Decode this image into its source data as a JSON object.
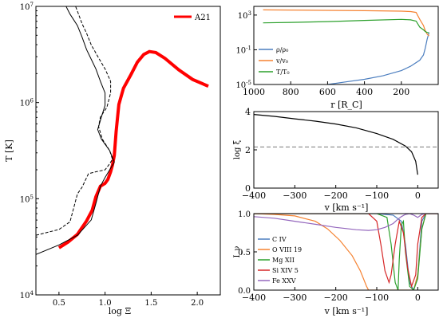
{
  "chart_data": [
    {
      "type": "line",
      "xlabel": "log Ξ",
      "ylabel": "T [K]",
      "xlim": [
        0.25,
        2.25
      ],
      "ylim_log10": [
        4,
        7
      ],
      "yscale": "log",
      "xticks": [
        "0.5",
        "1.0",
        "1.5",
        "2.0"
      ],
      "yticks": [
        "10^4",
        "10^5",
        "10^6",
        "10^7"
      ],
      "legend": {
        "placement": "top-right",
        "entries": [
          "A21"
        ]
      },
      "series": [
        {
          "name": "A21",
          "color": "#ff0000",
          "style": "thick",
          "x": [
            0.5,
            0.6,
            0.7,
            0.8,
            0.86,
            0.9,
            0.95,
            1.0,
            1.03,
            1.06,
            1.08,
            1.1,
            1.12,
            1.15,
            1.2,
            1.28,
            1.35,
            1.42,
            1.48,
            1.55,
            1.65,
            1.8,
            1.95,
            2.12
          ],
          "y_log10": [
            4.49,
            4.55,
            4.63,
            4.77,
            4.88,
            5.02,
            5.13,
            5.16,
            5.2,
            5.28,
            5.35,
            5.45,
            5.7,
            5.98,
            6.15,
            6.29,
            6.42,
            6.5,
            6.53,
            6.52,
            6.46,
            6.34,
            6.24,
            6.17
          ]
        },
        {
          "name": "",
          "color": "#000000",
          "style": "solid",
          "x": [
            0.25,
            0.5,
            0.7,
            0.85,
            0.9,
            0.95,
            1.0,
            1.05,
            1.08,
            1.1,
            1.05,
            0.96,
            0.92,
            0.96,
            1.0,
            1.0,
            0.95,
            0.9,
            0.85,
            0.8,
            0.75,
            0.7,
            0.62,
            0.55,
            0.47
          ],
          "y_log10": [
            4.42,
            4.52,
            4.62,
            4.78,
            4.95,
            5.13,
            5.22,
            5.3,
            5.35,
            5.38,
            5.5,
            5.62,
            5.72,
            5.85,
            5.97,
            6.1,
            6.22,
            6.35,
            6.45,
            6.55,
            6.68,
            6.8,
            6.92,
            7.05,
            7.2
          ]
        },
        {
          "name": "",
          "color": "#000000",
          "style": "dashed",
          "x": [
            0.25,
            0.5,
            0.62,
            0.7,
            0.75,
            0.82,
            0.9,
            1.0,
            1.04,
            1.08,
            1.05,
            0.97,
            0.93,
            0.95,
            1.02,
            1.06,
            1.06,
            1.0,
            0.92,
            0.85,
            0.8,
            0.75,
            0.7,
            0.64
          ],
          "y_log10": [
            4.62,
            4.68,
            4.76,
            5.05,
            5.12,
            5.26,
            5.28,
            5.3,
            5.35,
            5.41,
            5.5,
            5.62,
            5.75,
            5.85,
            5.95,
            6.1,
            6.22,
            6.35,
            6.48,
            6.6,
            6.72,
            6.82,
            6.95,
            7.1
          ]
        }
      ]
    },
    {
      "type": "line",
      "xlabel": "r [R_C]",
      "ylabel": "",
      "xlim": [
        1000,
        0
      ],
      "ylim_log10": [
        -5,
        4
      ],
      "yscale": "log",
      "xticks": [
        "1000",
        "800",
        "600",
        "400",
        "200"
      ],
      "yticks": [
        "10^-5",
        "10^-1",
        "10^3"
      ],
      "legend": {
        "placement": "lower-left",
        "entries": [
          "ρ/ρ₀",
          "v/v₀",
          "T/T₀"
        ]
      },
      "series": [
        {
          "name": "ρ/ρ₀",
          "color": "#4c7ebf",
          "r": [
            600,
            500,
            400,
            300,
            200,
            150,
            100,
            80,
            70,
            60,
            50
          ],
          "y_log10": [
            -5,
            -4.7,
            -4.4,
            -4.0,
            -3.4,
            -2.9,
            -2.2,
            -1.6,
            -0.8,
            0.2,
            1.0
          ]
        },
        {
          "name": "v/v₀",
          "color": "#f58231",
          "r": [
            950,
            800,
            600,
            400,
            200,
            150,
            120,
            100,
            80,
            70,
            60,
            50
          ],
          "y_log10": [
            3.6,
            3.58,
            3.54,
            3.5,
            3.45,
            3.4,
            3.3,
            2.5,
            1.8,
            1.2,
            0.8,
            0.6
          ]
        },
        {
          "name": "T/T₀",
          "color": "#2ca02c",
          "r": [
            950,
            800,
            600,
            400,
            200,
            150,
            120,
            100,
            80,
            70,
            60,
            50
          ],
          "y_log10": [
            2.1,
            2.15,
            2.25,
            2.38,
            2.5,
            2.45,
            2.3,
            1.6,
            1.3,
            1.1,
            1.0,
            0.95
          ]
        }
      ]
    },
    {
      "type": "line",
      "xlabel": "v [km s⁻¹]",
      "ylabel": "log ξ",
      "xlim": [
        -400,
        50
      ],
      "ylim": [
        0,
        4
      ],
      "xticks": [
        "−400",
        "−300",
        "−200",
        "−100",
        "0"
      ],
      "yticks": [
        "0",
        "2",
        "4"
      ],
      "hline": 2.15,
      "series": [
        {
          "name": "",
          "color": "#000000",
          "v": [
            -400,
            -350,
            -300,
            -250,
            -200,
            -150,
            -100,
            -60,
            -30,
            -15,
            -5,
            0
          ],
          "y": [
            3.85,
            3.75,
            3.62,
            3.5,
            3.35,
            3.15,
            2.85,
            2.55,
            2.2,
            1.9,
            1.4,
            0.7
          ]
        }
      ]
    },
    {
      "type": "line",
      "xlabel": "v [km s⁻¹]",
      "ylabel": "I_ν",
      "xlim": [
        -400,
        50
      ],
      "ylim": [
        0,
        1
      ],
      "xticks": [
        "−400",
        "−300",
        "−200",
        "−100",
        "0"
      ],
      "yticks": [
        "0.0",
        "0.5",
        "1.0"
      ],
      "legend": {
        "placement": "lower-left",
        "entries": [
          "C IV",
          "O VIII 19",
          "Mg XII",
          "Si XIV 5",
          "Fe XXV"
        ]
      },
      "series": [
        {
          "name": "C IV",
          "color": "#4c7ebf",
          "v": [
            -400,
            -100,
            -60,
            -40,
            -30,
            -20,
            -10,
            0,
            10,
            20,
            50
          ],
          "y": [
            1,
            1,
            0.98,
            0.9,
            0.6,
            0.1,
            0,
            0.2,
            0.9,
            1,
            1
          ]
        },
        {
          "name": "O VIII 19",
          "color": "#f58231",
          "v": [
            -400,
            -350,
            -300,
            -250,
            -220,
            -190,
            -160,
            -140,
            -125,
            -120,
            -100,
            -60,
            -30,
            -10,
            0,
            10,
            20,
            50
          ],
          "y": [
            1,
            0.99,
            0.97,
            0.9,
            0.8,
            0.65,
            0.45,
            0.25,
            0.05,
            0,
            0,
            0,
            0,
            0,
            0.2,
            0.8,
            1,
            1
          ]
        },
        {
          "name": "Mg XII",
          "color": "#2ca02c",
          "v": [
            -400,
            -100,
            -75,
            -65,
            -55,
            -48,
            -45,
            -40,
            -35,
            -30,
            -20,
            -10,
            0,
            10,
            20,
            50
          ],
          "y": [
            1,
            1,
            0.95,
            0.6,
            0.1,
            0,
            0.4,
            0.85,
            0.9,
            0.5,
            0.05,
            0,
            0.15,
            0.8,
            1,
            1
          ]
        },
        {
          "name": "Si XIV 5",
          "color": "#d62728",
          "v": [
            -400,
            -120,
            -100,
            -90,
            -80,
            -70,
            -65,
            -55,
            -45,
            -35,
            -25,
            -15,
            -5,
            0,
            10,
            20,
            50
          ],
          "y": [
            1,
            1,
            0.9,
            0.6,
            0.25,
            0.1,
            0.2,
            0.6,
            0.9,
            0.75,
            0.3,
            0.05,
            0.2,
            0.6,
            0.95,
            1,
            1
          ]
        },
        {
          "name": "Fe XXV",
          "color": "#9467bd",
          "v": [
            -400,
            -350,
            -300,
            -250,
            -200,
            -150,
            -120,
            -100,
            -80,
            -60,
            -50,
            -40,
            -30,
            -20,
            -10,
            0,
            10,
            20,
            50
          ],
          "y": [
            0.96,
            0.94,
            0.9,
            0.86,
            0.82,
            0.79,
            0.78,
            0.79,
            0.82,
            0.87,
            0.92,
            0.96,
            0.99,
            1,
            0.98,
            0.95,
            0.99,
            1,
            1
          ]
        }
      ]
    }
  ]
}
